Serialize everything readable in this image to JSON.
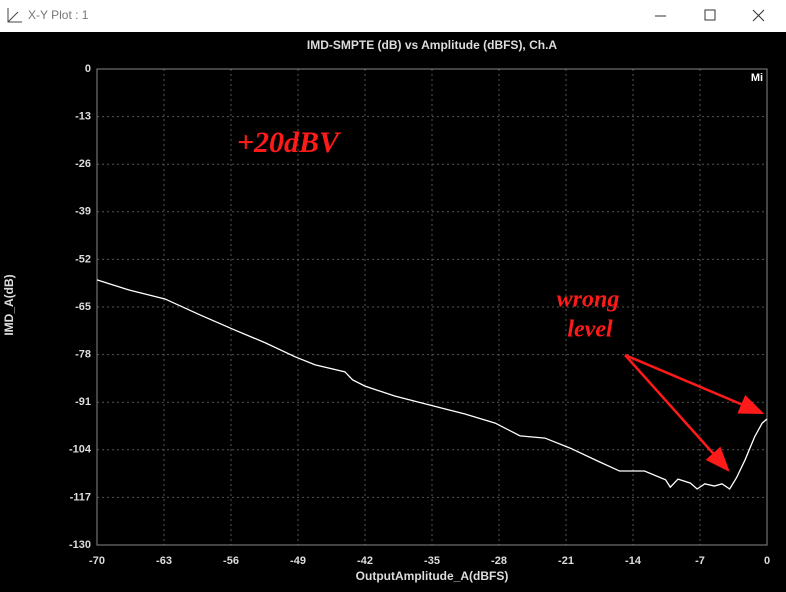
{
  "window_title": "X-Y Plot : 1",
  "chart_data": {
    "type": "line",
    "title": "IMD-SMPTE (dB) vs Amplitude (dBFS), Ch.A",
    "xlabel": "OutputAmplitude_A(dBFS)",
    "ylabel": "IMD_A(dB)",
    "annotations": [
      "+20dBV",
      "wrong",
      "level",
      "Mi"
    ],
    "xlim": [
      -70,
      0
    ],
    "ylim": [
      -130,
      0
    ],
    "xticks": [
      -70,
      -63,
      -56,
      -49,
      -42,
      -35,
      -28,
      -21,
      -14,
      -7,
      0
    ],
    "yticks": [
      0,
      -13,
      -26,
      -39,
      -52,
      -65,
      -78,
      -91,
      -104,
      -117,
      -130
    ],
    "grid": true,
    "series": [
      {
        "name": "Ch.A",
        "color": "#ffffff",
        "x": [
          -70,
          -66.6,
          -62.9,
          -59.2,
          -55.6,
          -52.4,
          -49.3,
          -47.2,
          -44.1,
          -43.3,
          -42.0,
          -38.9,
          -35.2,
          -31.6,
          -28.4,
          -25.8,
          -23.2,
          -20.6,
          -17.5,
          -15.4,
          -12.8,
          -10.6,
          -10.1,
          -9.3,
          -8.0,
          -7.3,
          -6.5,
          -5.5,
          -4.7,
          -3.9,
          -3.2,
          -2.3,
          -1.3,
          -0.5,
          0
        ],
        "values": [
          -57.6,
          -60.4,
          -62.8,
          -67.2,
          -71.3,
          -74.8,
          -78.6,
          -80.8,
          -82.7,
          -84.9,
          -86.6,
          -89.3,
          -91.8,
          -94.2,
          -96.7,
          -100.2,
          -100.8,
          -103.5,
          -107.3,
          -109.8,
          -109.8,
          -112.2,
          -114.2,
          -112.0,
          -113.1,
          -114.7,
          -113.3,
          -113.9,
          -113.3,
          -114.7,
          -111.7,
          -106.8,
          -100.5,
          -96.7,
          -95.6
        ]
      }
    ]
  }
}
